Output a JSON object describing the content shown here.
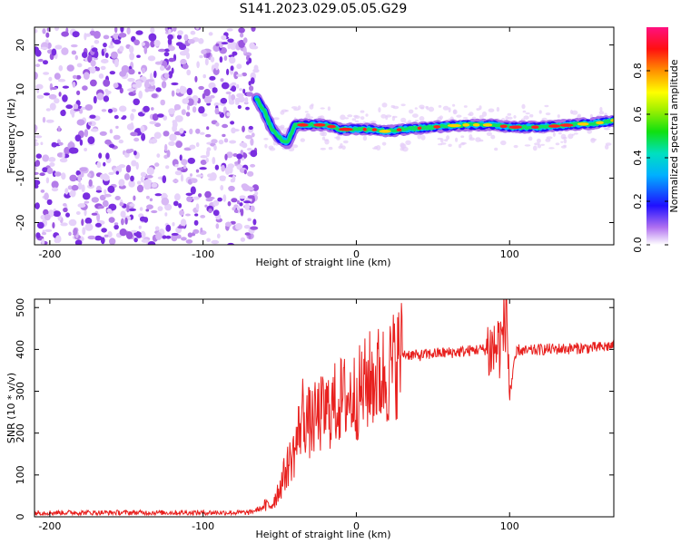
{
  "title": "S141.2023.029.05.05.G29",
  "colors": {
    "snr_line": "#e8201e",
    "frame": "#000000",
    "background": "#ffffff"
  },
  "chart_data": [
    {
      "type": "heatmap",
      "name": "spectrogram",
      "xlabel": "Height of straight line (km)",
      "ylabel": "Frequency (Hz)",
      "xlim": [
        -210,
        168
      ],
      "ylim": [
        -25,
        24
      ],
      "xticks": [
        "-200",
        "-100",
        "0",
        "100"
      ],
      "yticks": [
        "-20",
        "-10",
        "0",
        "10",
        "20"
      ],
      "colorbar": {
        "label": "Normalized spectral amplitude",
        "range": [
          0,
          1
        ],
        "ticks": [
          "0.0",
          "0.2",
          "0.4",
          "0.6",
          "0.8"
        ]
      },
      "noise_region_km": [
        -210,
        -65
      ],
      "signal_track": {
        "x_km": [
          -65,
          -60,
          -55,
          -50,
          -45,
          -40,
          -30,
          -20,
          -10,
          0,
          10,
          20,
          30,
          50,
          70,
          90,
          100,
          120,
          140,
          160,
          168
        ],
        "freq_hz": [
          8,
          5,
          1,
          -1,
          -2,
          2,
          2,
          2,
          1,
          1,
          1,
          0.5,
          1,
          1.5,
          2,
          2,
          1.5,
          1.5,
          2,
          2.5,
          3
        ]
      }
    },
    {
      "type": "line",
      "name": "snr",
      "xlabel": "Height of straight line (km)",
      "ylabel": "SNR (10 * v/v)",
      "xlim": [
        -210,
        168
      ],
      "ylim": [
        0,
        520
      ],
      "xticks": [
        "-200",
        "-100",
        "0",
        "100"
      ],
      "yticks": [
        "0",
        "100",
        "200",
        "300",
        "400",
        "500"
      ],
      "series": [
        {
          "name": "SNR",
          "x": [
            -210,
            -150,
            -100,
            -70,
            -55,
            -50,
            -45,
            -40,
            -35,
            -30,
            -25,
            -20,
            -10,
            0,
            10,
            20,
            30,
            40,
            50,
            60,
            70,
            80,
            90,
            95,
            98,
            100,
            105,
            110,
            120,
            140,
            160,
            168
          ],
          "y": [
            10,
            10,
            10,
            10,
            30,
            70,
            120,
            160,
            250,
            220,
            240,
            250,
            280,
            290,
            330,
            340,
            390,
            385,
            390,
            392,
            395,
            400,
            400,
            420,
            500,
            300,
            400,
            395,
            400,
            402,
            405,
            410
          ]
        }
      ]
    }
  ]
}
